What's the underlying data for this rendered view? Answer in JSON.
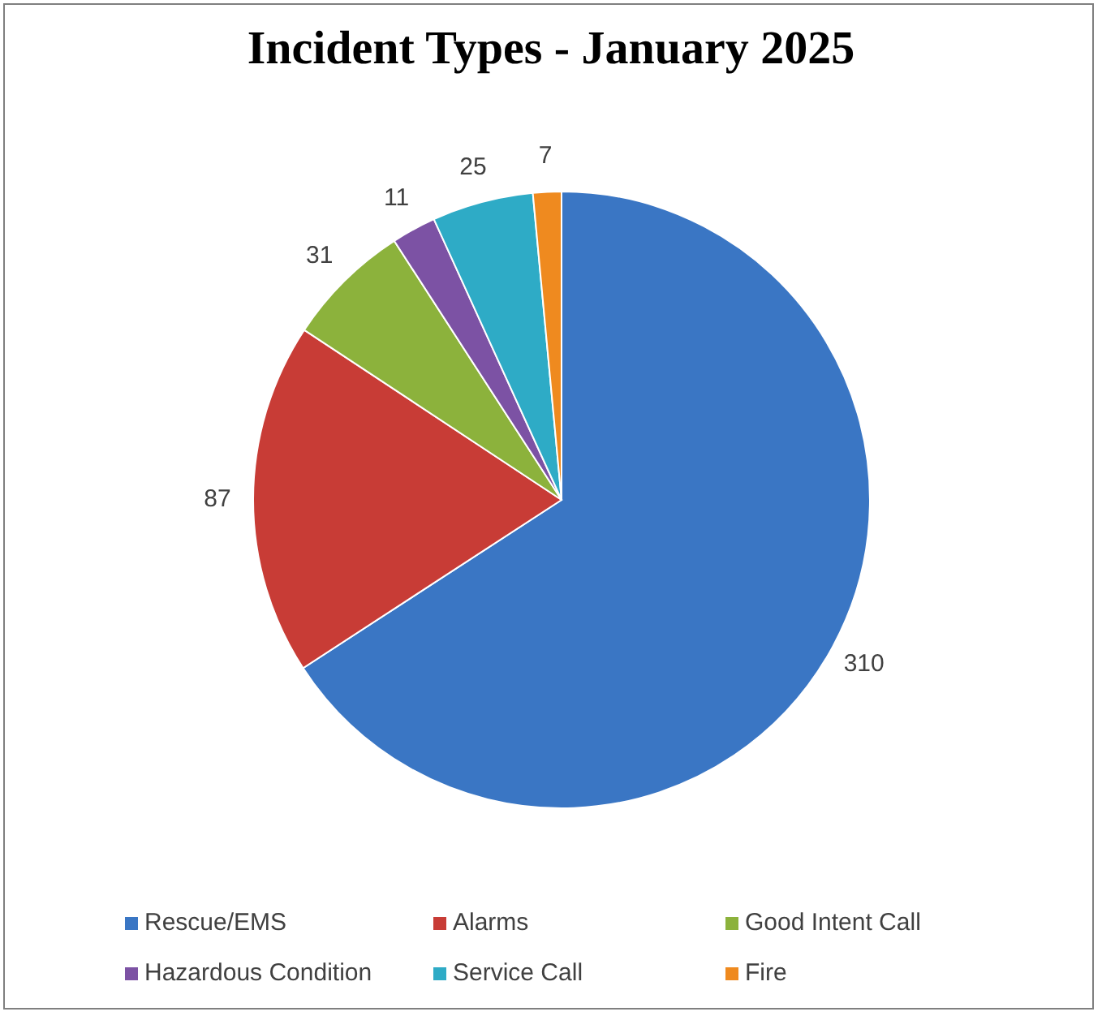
{
  "chart_data": {
    "type": "pie",
    "title": "Incident Types - January 2025",
    "categories": [
      "Rescue/EMS",
      "Alarms",
      "Good Intent Call",
      "Hazardous Condition",
      "Service Call",
      "Fire"
    ],
    "values": [
      310,
      87,
      31,
      11,
      25,
      7
    ],
    "colors": [
      "#3a76c4",
      "#c83c36",
      "#8cb23c",
      "#7c52a4",
      "#2eabc6",
      "#ef8a1f"
    ],
    "data_labels": true,
    "legend": "bottom"
  }
}
